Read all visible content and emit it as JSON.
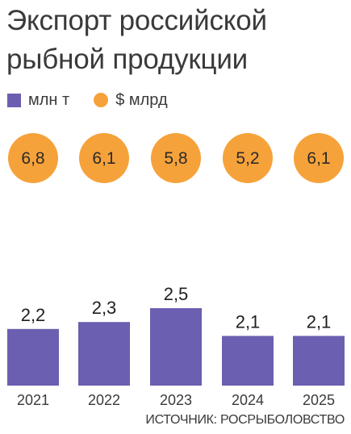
{
  "title_line1": "Экспорт российской",
  "title_line2": "рыбной продукции",
  "legend": {
    "series1": "млн т",
    "series2": "$ млрд"
  },
  "source": "ИСТОЧНИК: РОСРЫБОЛОВСТВО",
  "colors": {
    "bar": "#6a5fb0",
    "circle": "#f6a23a",
    "circle_text": "#2a2a2a"
  },
  "chart_data": {
    "type": "bar",
    "categories": [
      "2021",
      "2022",
      "2023",
      "2024",
      "2025"
    ],
    "series": [
      {
        "name": "млн т",
        "values": [
          2.2,
          2.3,
          2.5,
          2.1,
          2.1
        ],
        "labels": [
          "2,2",
          "2,3",
          "2,5",
          "2,1",
          "2,1"
        ]
      },
      {
        "name": "$ млрд",
        "values": [
          6.8,
          6.1,
          5.8,
          5.2,
          6.1
        ],
        "labels": [
          "6,8",
          "6,1",
          "5,8",
          "5,2",
          "6,1"
        ]
      }
    ],
    "title": "Экспорт российской рыбной продукции"
  }
}
